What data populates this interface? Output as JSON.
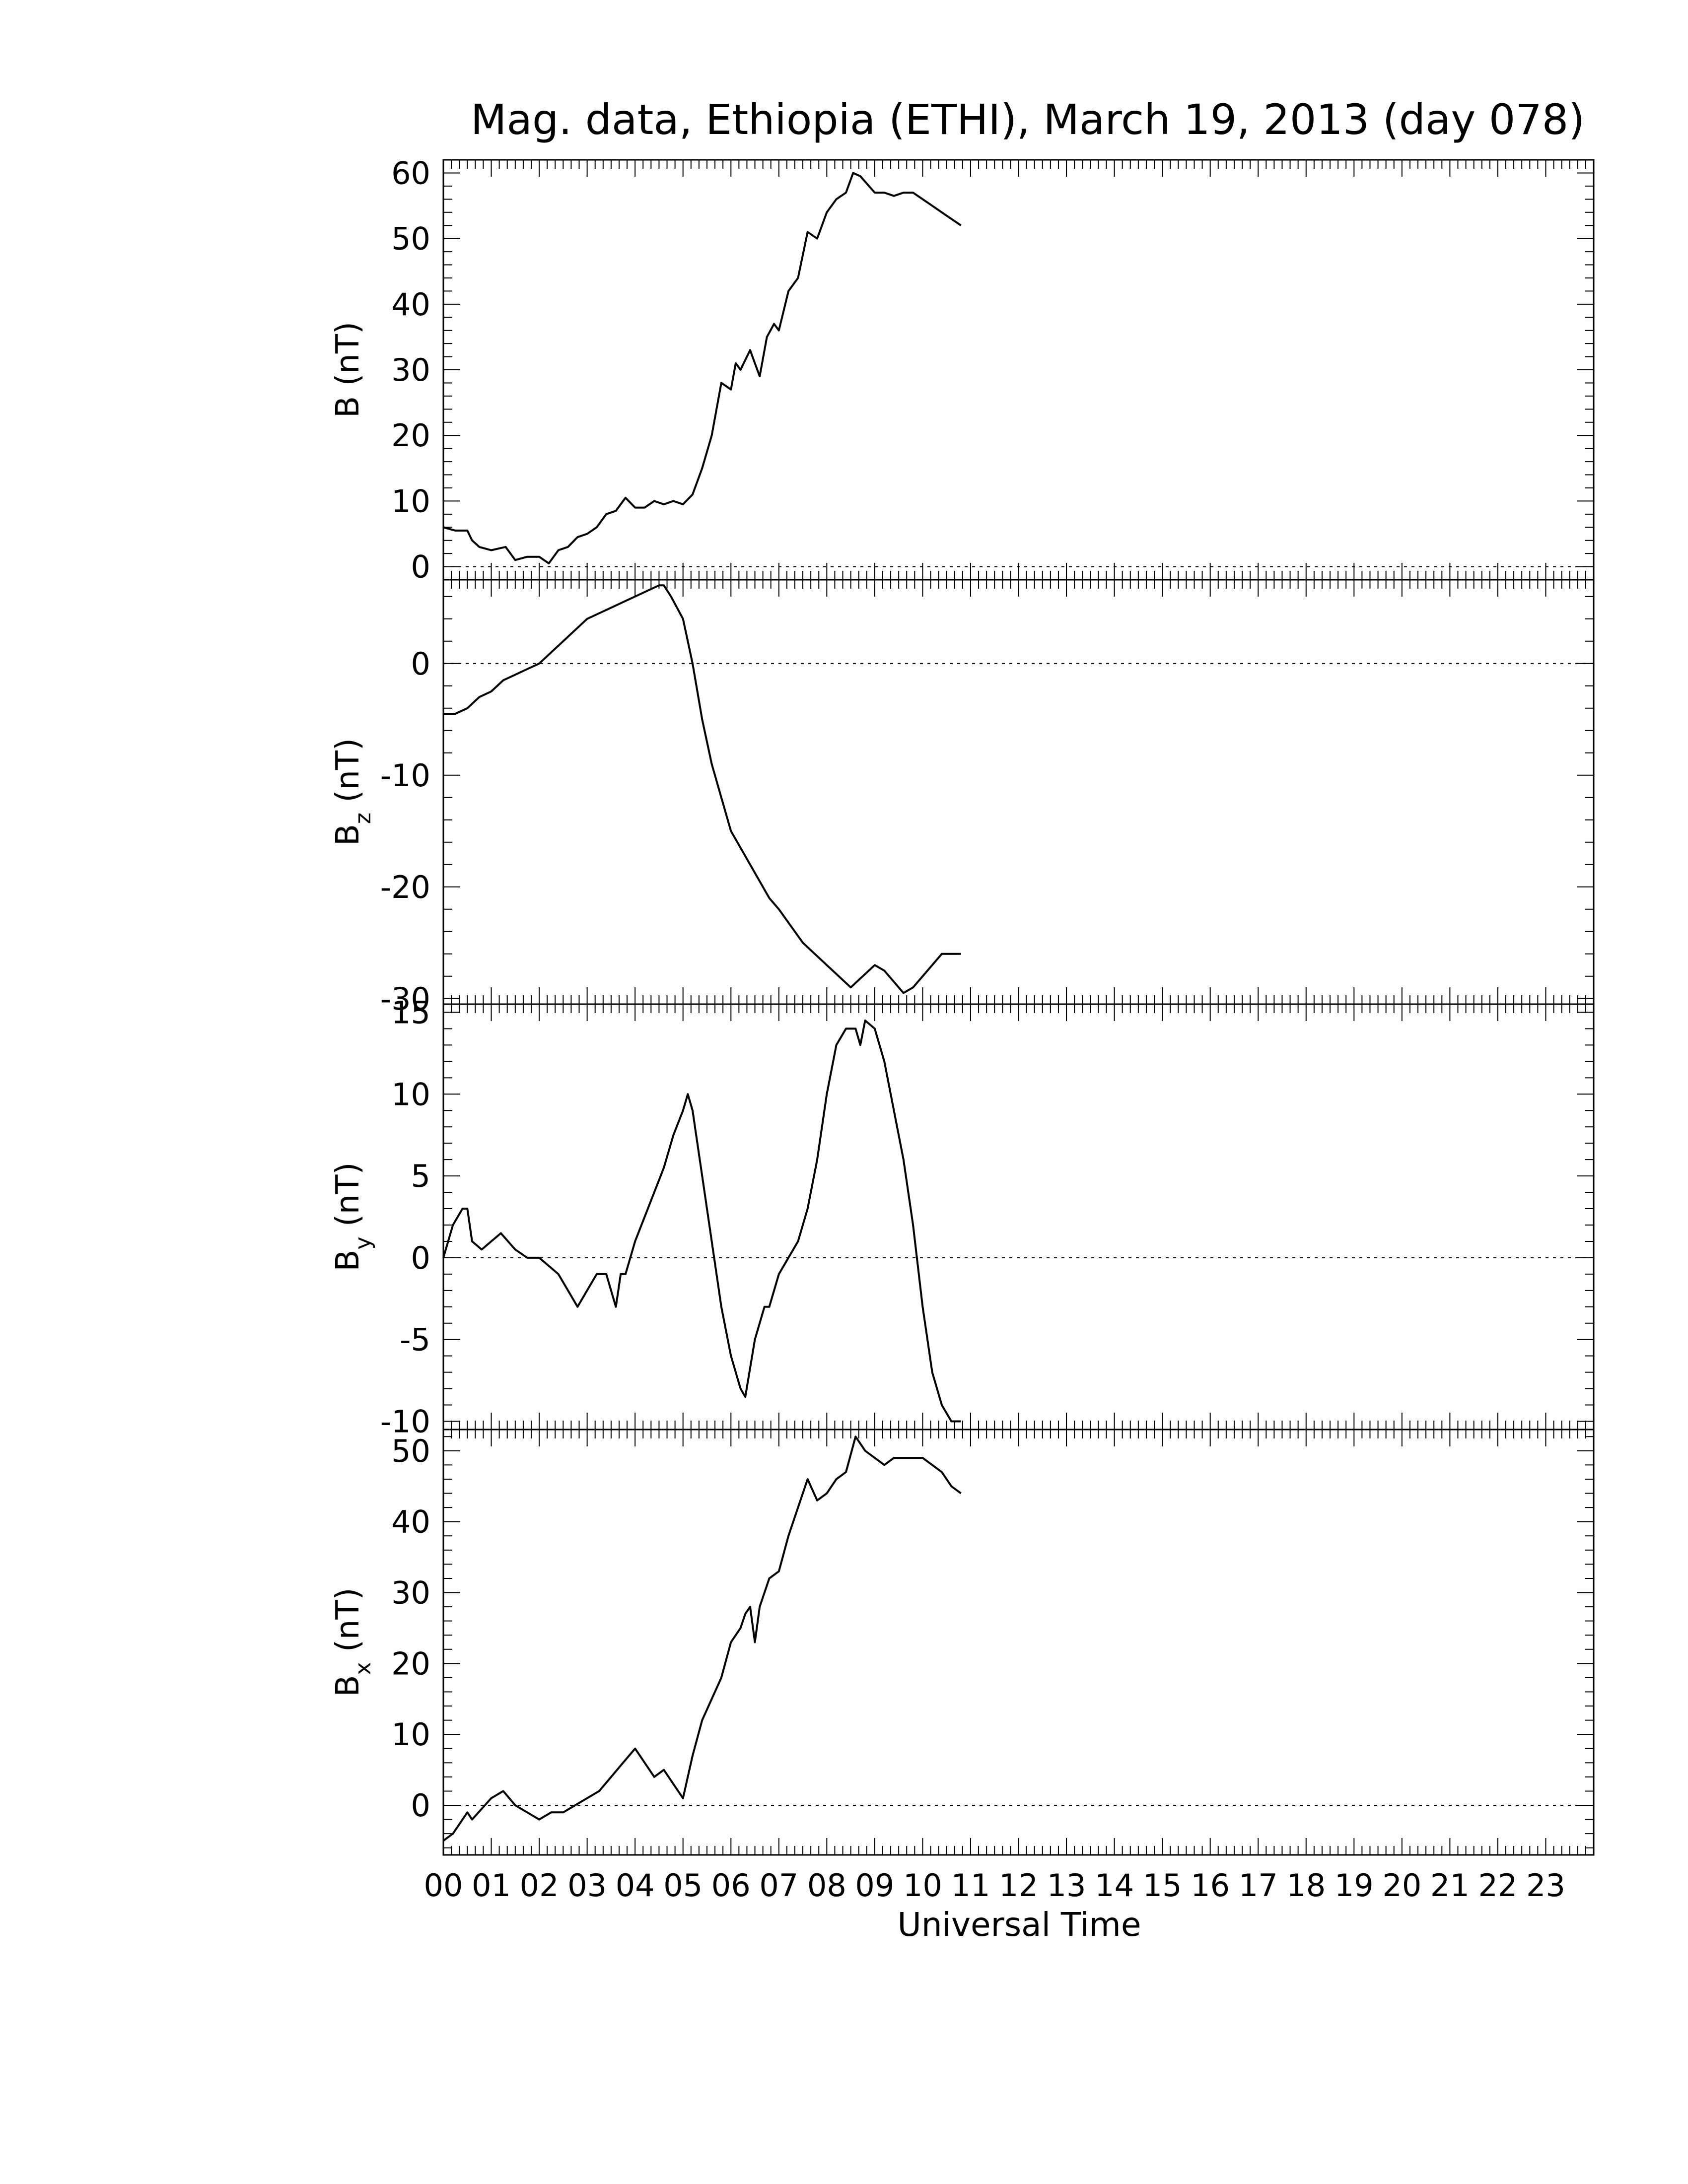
{
  "figure": {
    "title": "Mag. data, Ethiopia (ETHI), March 19, 2013 (day 078)",
    "xlabel": "Universal Time",
    "x_tick_labels": [
      "00",
      "01",
      "02",
      "03",
      "04",
      "05",
      "06",
      "07",
      "08",
      "09",
      "10",
      "11",
      "12",
      "13",
      "14",
      "15",
      "16",
      "17",
      "18",
      "19",
      "20",
      "21",
      "22",
      "23"
    ]
  },
  "chart_data": [
    {
      "type": "line",
      "panel": "B",
      "ylabel": "B (nT)",
      "ylabel_main": "B",
      "ylabel_sub": "",
      "ylabel_unit": "(nT)",
      "xlim": [
        0,
        24
      ],
      "ylim": [
        -2,
        62
      ],
      "yticks": [
        0,
        10,
        20,
        30,
        40,
        50,
        60
      ],
      "ytick_labels": [
        "0",
        "10",
        "20",
        "30",
        "40",
        "50",
        "60"
      ],
      "zero_line": true,
      "x": [
        0,
        0.25,
        0.5,
        0.6,
        0.75,
        1.0,
        1.3,
        1.5,
        1.75,
        2.0,
        2.2,
        2.4,
        2.6,
        2.8,
        3.0,
        3.2,
        3.4,
        3.6,
        3.8,
        4.0,
        4.2,
        4.4,
        4.6,
        4.8,
        5.0,
        5.2,
        5.4,
        5.6,
        5.8,
        6.0,
        6.1,
        6.2,
        6.4,
        6.5,
        6.6,
        6.75,
        6.9,
        7.0,
        7.2,
        7.4,
        7.6,
        7.8,
        8.0,
        8.2,
        8.4,
        8.55,
        8.7,
        9.0,
        9.2,
        9.4,
        9.6,
        9.8,
        10.0,
        10.2,
        10.4,
        10.6,
        10.8
      ],
      "values": [
        6,
        5.5,
        5.5,
        4,
        3,
        2.5,
        3,
        1,
        1.5,
        1.5,
        0.5,
        2.5,
        3,
        4.5,
        5,
        6,
        8,
        8.5,
        10.5,
        9,
        9,
        10,
        9.5,
        10,
        9.5,
        11,
        15,
        20,
        28,
        27,
        31,
        30,
        33,
        31,
        29,
        35,
        37,
        36,
        42,
        44,
        51,
        50,
        54,
        56,
        57,
        60,
        59.5,
        57,
        57,
        56.5,
        57,
        57,
        56,
        55,
        54,
        53,
        52
      ]
    },
    {
      "type": "line",
      "panel": "Bz",
      "ylabel": "Bz (nT)",
      "ylabel_main": "B",
      "ylabel_sub": "z",
      "ylabel_unit": "(nT)",
      "xlim": [
        0,
        24
      ],
      "ylim": [
        -30.5,
        7.5
      ],
      "yticks": [
        -30,
        -20,
        -10,
        0
      ],
      "ytick_labels": [
        "-30",
        "-20",
        "-10",
        "0"
      ],
      "zero_line": true,
      "x": [
        0,
        0.25,
        0.5,
        0.75,
        1.0,
        1.25,
        1.5,
        1.75,
        2.0,
        2.25,
        2.5,
        2.75,
        3.0,
        3.25,
        3.5,
        3.75,
        4.0,
        4.25,
        4.5,
        4.6,
        4.75,
        5.0,
        5.2,
        5.4,
        5.6,
        5.8,
        6.0,
        6.2,
        6.4,
        6.6,
        6.8,
        7.0,
        7.25,
        7.5,
        7.75,
        8.0,
        8.25,
        8.5,
        8.75,
        9.0,
        9.2,
        9.4,
        9.6,
        9.8,
        10.0,
        10.2,
        10.4,
        10.6,
        10.8
      ],
      "values": [
        -4.5,
        -4.5,
        -4,
        -3,
        -2.5,
        -1.5,
        -1,
        -0.5,
        0,
        1,
        2,
        3,
        4,
        4.5,
        5,
        5.5,
        6,
        6.5,
        7,
        7,
        6,
        4,
        0,
        -5,
        -9,
        -12,
        -15,
        -16.5,
        -18,
        -19.5,
        -21,
        -22,
        -23.5,
        -25,
        -26,
        -27,
        -28,
        -29,
        -28,
        -27,
        -27.5,
        -28.5,
        -29.5,
        -29,
        -28,
        -27,
        -26,
        -26,
        -26
      ]
    },
    {
      "type": "line",
      "panel": "By",
      "ylabel": "By (nT)",
      "ylabel_main": "B",
      "ylabel_sub": "y",
      "ylabel_unit": "(nT)",
      "xlim": [
        0,
        24
      ],
      "ylim": [
        -10.5,
        15.5
      ],
      "yticks": [
        -10,
        -5,
        0,
        5,
        10,
        15
      ],
      "ytick_labels": [
        "-10",
        "-5",
        "0",
        "5",
        "10",
        "15"
      ],
      "zero_line": true,
      "x": [
        0,
        0.2,
        0.4,
        0.5,
        0.6,
        0.8,
        1.0,
        1.2,
        1.5,
        1.75,
        2.0,
        2.2,
        2.4,
        2.6,
        2.8,
        3.0,
        3.2,
        3.4,
        3.6,
        3.7,
        3.8,
        4.0,
        4.2,
        4.4,
        4.6,
        4.8,
        5.0,
        5.1,
        5.2,
        5.4,
        5.6,
        5.8,
        6.0,
        6.2,
        6.3,
        6.5,
        6.7,
        6.8,
        7.0,
        7.2,
        7.4,
        7.6,
        7.8,
        8.0,
        8.2,
        8.4,
        8.6,
        8.7,
        8.8,
        9.0,
        9.2,
        9.4,
        9.6,
        9.8,
        10.0,
        10.2,
        10.4,
        10.6,
        10.8
      ],
      "values": [
        0,
        2,
        3,
        3,
        1,
        0.5,
        1,
        1.5,
        0.5,
        0,
        0,
        -0.5,
        -1,
        -2,
        -3,
        -2,
        -1,
        -1,
        -3,
        -1,
        -1,
        1,
        2.5,
        4,
        5.5,
        7.5,
        9,
        10,
        9,
        5,
        1,
        -3,
        -6,
        -8,
        -8.5,
        -5,
        -3,
        -3,
        -1,
        0,
        1,
        3,
        6,
        10,
        13,
        14,
        14,
        13,
        14.5,
        14,
        12,
        9,
        6,
        2,
        -3,
        -7,
        -9,
        -10,
        -10
      ]
    },
    {
      "type": "line",
      "panel": "Bx",
      "ylabel": "Bx (nT)",
      "ylabel_main": "B",
      "ylabel_sub": "x",
      "ylabel_unit": "(nT)",
      "xlim": [
        0,
        24
      ],
      "ylim": [
        -7,
        53
      ],
      "yticks": [
        0,
        10,
        20,
        30,
        40,
        50
      ],
      "ytick_labels": [
        "0",
        "10",
        "20",
        "30",
        "40",
        "50"
      ],
      "zero_line": true,
      "x": [
        0,
        0.2,
        0.4,
        0.5,
        0.6,
        0.8,
        1.0,
        1.25,
        1.5,
        1.75,
        2.0,
        2.25,
        2.5,
        2.75,
        3.0,
        3.25,
        3.5,
        3.75,
        4.0,
        4.2,
        4.4,
        4.6,
        4.8,
        5.0,
        5.2,
        5.4,
        5.6,
        5.8,
        6.0,
        6.2,
        6.3,
        6.4,
        6.5,
        6.6,
        6.8,
        7.0,
        7.2,
        7.4,
        7.6,
        7.8,
        8.0,
        8.2,
        8.4,
        8.6,
        8.8,
        9.0,
        9.2,
        9.4,
        9.6,
        9.8,
        10.0,
        10.2,
        10.4,
        10.6,
        10.8
      ],
      "values": [
        -5,
        -4,
        -2,
        -1,
        -2,
        -0.5,
        1,
        2,
        0,
        -1,
        -2,
        -1,
        -1,
        0,
        1,
        2,
        4,
        6,
        8,
        6,
        4,
        5,
        3,
        1,
        7,
        12,
        15,
        18,
        23,
        25,
        27,
        28,
        23,
        28,
        32,
        33,
        38,
        42,
        46,
        43,
        44,
        46,
        47,
        52,
        50,
        49,
        48,
        49,
        49,
        49,
        49,
        48,
        47,
        45,
        44
      ]
    }
  ]
}
